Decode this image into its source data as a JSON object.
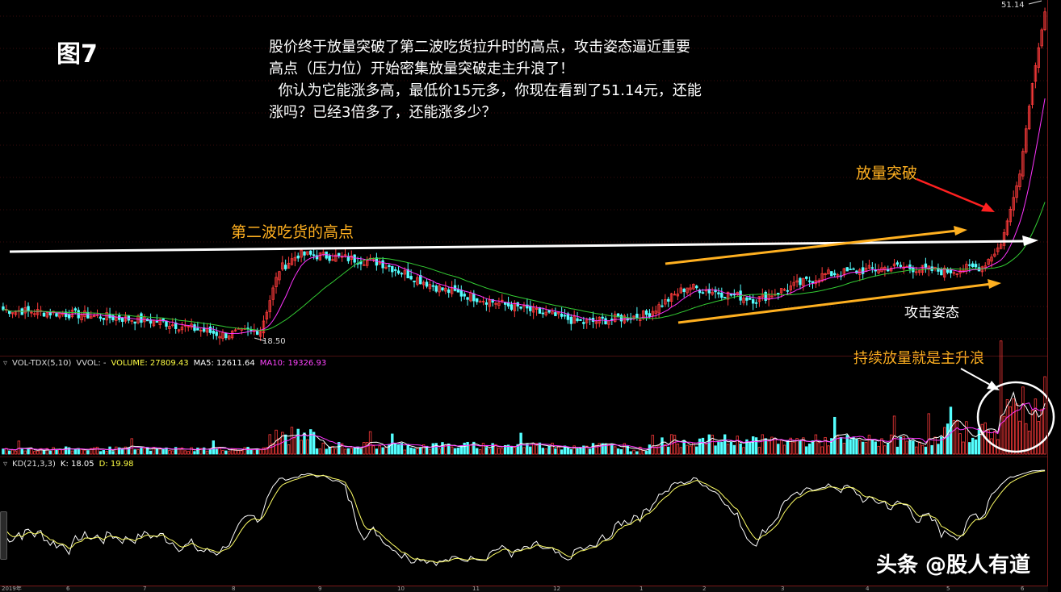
{
  "figure_label": "图7",
  "description_lines": [
    "股价终于放量突破了第二波吃货拉升时的高点，攻击姿态逼近重要",
    "高点（压力位）开始密集放量突破走主升浪了！",
    "  你认为它能涨多高，最低价15元多，你现在看到了51.14元，还能",
    "涨吗？已经3倍多了，还能涨多少？"
  ],
  "annotations": {
    "second_wave_high": "第二波吃货的高点",
    "volume_breakout": "放量突破",
    "attack_posture": "攻击姿态",
    "sustained_volume": "持续放量就是主升浪"
  },
  "price_labels": {
    "high": "51.14",
    "low": "18.50"
  },
  "volume_indicator": {
    "name": "VOL-TDX(5,10)",
    "vvol": "VVOL: -",
    "volume": "VOLUME: 27809.43",
    "ma5": "MA5: 12611.64",
    "ma10": "MA10: 19326.93"
  },
  "kd_indicator": {
    "name": "KD(21,3,3)",
    "k": "K: 18.05",
    "d": "D: 19.98"
  },
  "x_axis_ticks": [
    "2019年",
    "6",
    "7",
    "8",
    "9",
    "10",
    "11",
    "12",
    "1",
    "2",
    "3",
    "4",
    "5",
    "6"
  ],
  "watermark": "头条 @股人有道",
  "colors": {
    "up": "#ff3b3b",
    "down": "#54ffff",
    "ma_short": "#ff33ff",
    "ma_long": "#33cc33",
    "annotation_orange": "#ffb020",
    "arrow_red": "#ff2020"
  },
  "chart_data": {
    "type": "candlestick",
    "price_series_waypoints": [
      {
        "t": 0,
        "close": 21.5
      },
      {
        "t": 25,
        "close": 21.0
      },
      {
        "t": 50,
        "close": 20.3
      },
      {
        "t": 70,
        "close": 19.0
      },
      {
        "t": 82,
        "close": 19.5
      },
      {
        "t": 88,
        "close": 25.5
      },
      {
        "t": 94,
        "close": 27.0
      },
      {
        "t": 105,
        "close": 26.8
      },
      {
        "t": 120,
        "close": 26.2
      },
      {
        "t": 140,
        "close": 23.5
      },
      {
        "t": 160,
        "close": 22.0
      },
      {
        "t": 185,
        "close": 20.2
      },
      {
        "t": 205,
        "close": 21.0
      },
      {
        "t": 218,
        "close": 23.8
      },
      {
        "t": 240,
        "close": 22.5
      },
      {
        "t": 262,
        "close": 25.0
      },
      {
        "t": 285,
        "close": 25.8
      },
      {
        "t": 300,
        "close": 25.3
      },
      {
        "t": 312,
        "close": 25.8
      },
      {
        "t": 318,
        "close": 28.0
      },
      {
        "t": 324,
        "close": 35.0
      },
      {
        "t": 328,
        "close": 44.0
      },
      {
        "t": 332,
        "close": 51.14
      }
    ],
    "low": 18.5,
    "high": 51.14,
    "ylim": [
      17.0,
      52.0
    ]
  }
}
